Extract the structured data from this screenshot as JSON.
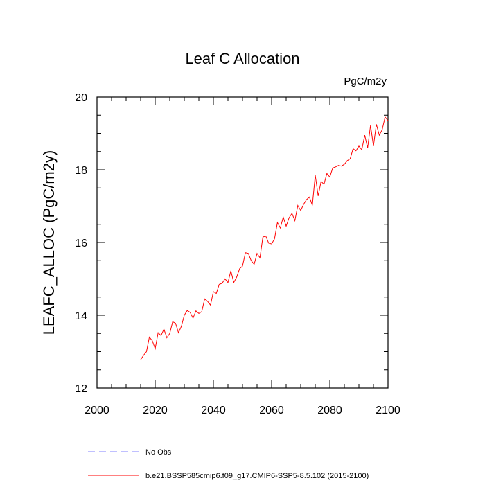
{
  "chart_data": {
    "type": "line",
    "title": "Leaf C Allocation",
    "units": "PgC/m2y",
    "xlabel": "",
    "ylabel": "LEAFC_ALLOC  (PgC/m2y)",
    "xlim": [
      2000,
      2100
    ],
    "ylim": [
      12,
      20
    ],
    "xticks": [
      "2000",
      "2020",
      "2040",
      "2060",
      "2080",
      "2100"
    ],
    "yticks": [
      "12",
      "14",
      "16",
      "18",
      "20"
    ],
    "grid": false,
    "legend_position": "bottom-left",
    "series": [
      {
        "name": "No Obs",
        "color": "#8080ff",
        "dash": true,
        "x": [],
        "y": []
      },
      {
        "name": "b.e21.BSSP585cmip6.f09_g17.CMIP6-SSP5-8.5.102 (2015-2100)",
        "color": "#ff0000",
        "dash": false,
        "x": [
          2015,
          2016,
          2017,
          2018,
          2019,
          2020,
          2021,
          2022,
          2023,
          2024,
          2025,
          2026,
          2027,
          2028,
          2029,
          2030,
          2031,
          2032,
          2033,
          2034,
          2035,
          2036,
          2037,
          2038,
          2039,
          2040,
          2041,
          2042,
          2043,
          2044,
          2045,
          2046,
          2047,
          2048,
          2049,
          2050,
          2051,
          2052,
          2053,
          2054,
          2055,
          2056,
          2057,
          2058,
          2059,
          2060,
          2061,
          2062,
          2063,
          2064,
          2065,
          2066,
          2067,
          2068,
          2069,
          2070,
          2071,
          2072,
          2073,
          2074,
          2075,
          2076,
          2077,
          2078,
          2079,
          2080,
          2081,
          2082,
          2083,
          2084,
          2085,
          2086,
          2087,
          2088,
          2089,
          2090,
          2091,
          2092,
          2093,
          2094,
          2095,
          2096,
          2097,
          2098,
          2099,
          2100
        ],
        "y": [
          12.78,
          12.9,
          13.0,
          13.4,
          13.3,
          13.08,
          13.52,
          13.44,
          13.62,
          13.38,
          13.5,
          13.82,
          13.78,
          13.52,
          13.7,
          14.0,
          14.13,
          14.08,
          13.92,
          14.12,
          14.05,
          14.1,
          14.45,
          14.38,
          14.28,
          14.65,
          14.6,
          14.85,
          14.88,
          15.0,
          14.9,
          15.22,
          14.9,
          15.05,
          15.28,
          15.35,
          15.72,
          15.7,
          15.5,
          15.4,
          15.7,
          15.58,
          16.15,
          16.18,
          15.98,
          15.96,
          16.1,
          16.55,
          16.4,
          16.7,
          16.45,
          16.68,
          16.8,
          16.6,
          17.02,
          16.88,
          17.05,
          17.18,
          17.25,
          17.02,
          17.85,
          17.28,
          17.68,
          17.6,
          17.9,
          17.8,
          18.05,
          18.08,
          18.12,
          18.1,
          18.15,
          18.25,
          18.3,
          18.58,
          18.52,
          18.65,
          18.55,
          18.95,
          18.6,
          19.22,
          18.65,
          19.25,
          18.95,
          19.1,
          19.45,
          19.35
        ]
      }
    ]
  }
}
